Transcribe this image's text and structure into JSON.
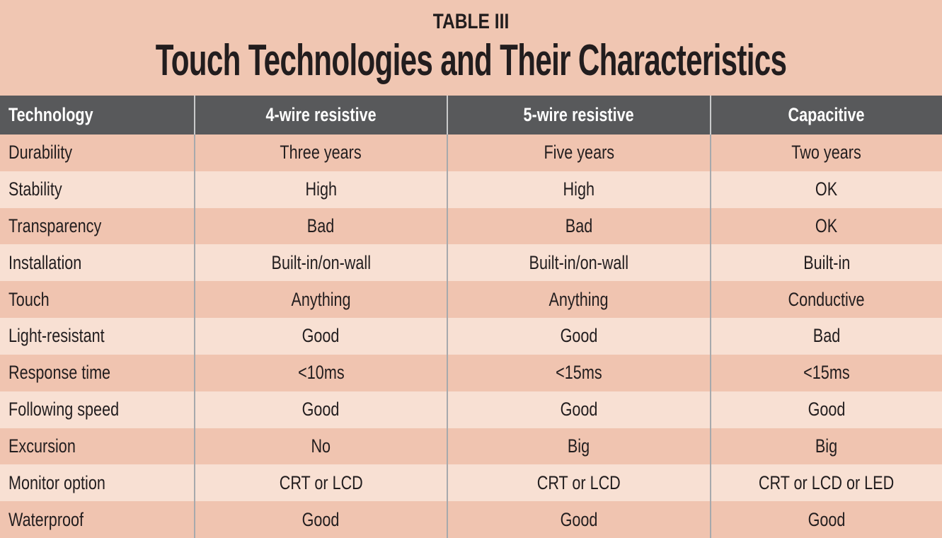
{
  "chart_data": {
    "type": "table",
    "kicker": "TABLE III",
    "title": "Touch Technologies and Their Characteristics",
    "columns": [
      "Technology",
      "4-wire resistive",
      "5-wire resistive",
      "Capacitive"
    ],
    "rows": [
      {
        "label": "Durability",
        "values": [
          "Three years",
          "Five years",
          "Two years"
        ]
      },
      {
        "label": "Stability",
        "values": [
          "High",
          "High",
          "OK"
        ]
      },
      {
        "label": "Transparency",
        "values": [
          "Bad",
          "Bad",
          "OK"
        ]
      },
      {
        "label": "Installation",
        "values": [
          "Built-in/on-wall",
          "Built-in/on-wall",
          "Built-in"
        ]
      },
      {
        "label": "Touch",
        "values": [
          "Anything",
          "Anything",
          "Conductive"
        ]
      },
      {
        "label": "Light-resistant",
        "values": [
          "Good",
          "Good",
          "Bad"
        ]
      },
      {
        "label": "Response time",
        "values": [
          "<10ms",
          "<15ms",
          "<15ms"
        ]
      },
      {
        "label": "Following speed",
        "values": [
          "Good",
          "Good",
          "Good"
        ]
      },
      {
        "label": "Excursion",
        "values": [
          "No",
          "Big",
          "Big"
        ]
      },
      {
        "label": "Monitor option",
        "values": [
          "CRT or LCD",
          "CRT or LCD",
          "CRT or LCD or LED"
        ]
      },
      {
        "label": "Waterproof",
        "values": [
          "Good",
          "Good",
          "Good"
        ]
      }
    ],
    "layout": {
      "grid": "off",
      "row_striping": true
    }
  },
  "colors": {
    "page_background": "#f0c6b2",
    "header_background": "#58595b",
    "header_text": "#ffffff",
    "row_dark": "#f0c4b0",
    "row_light": "#f8e0d3",
    "column_divider": "#a7a9ac",
    "body_text": "#221d1e"
  }
}
